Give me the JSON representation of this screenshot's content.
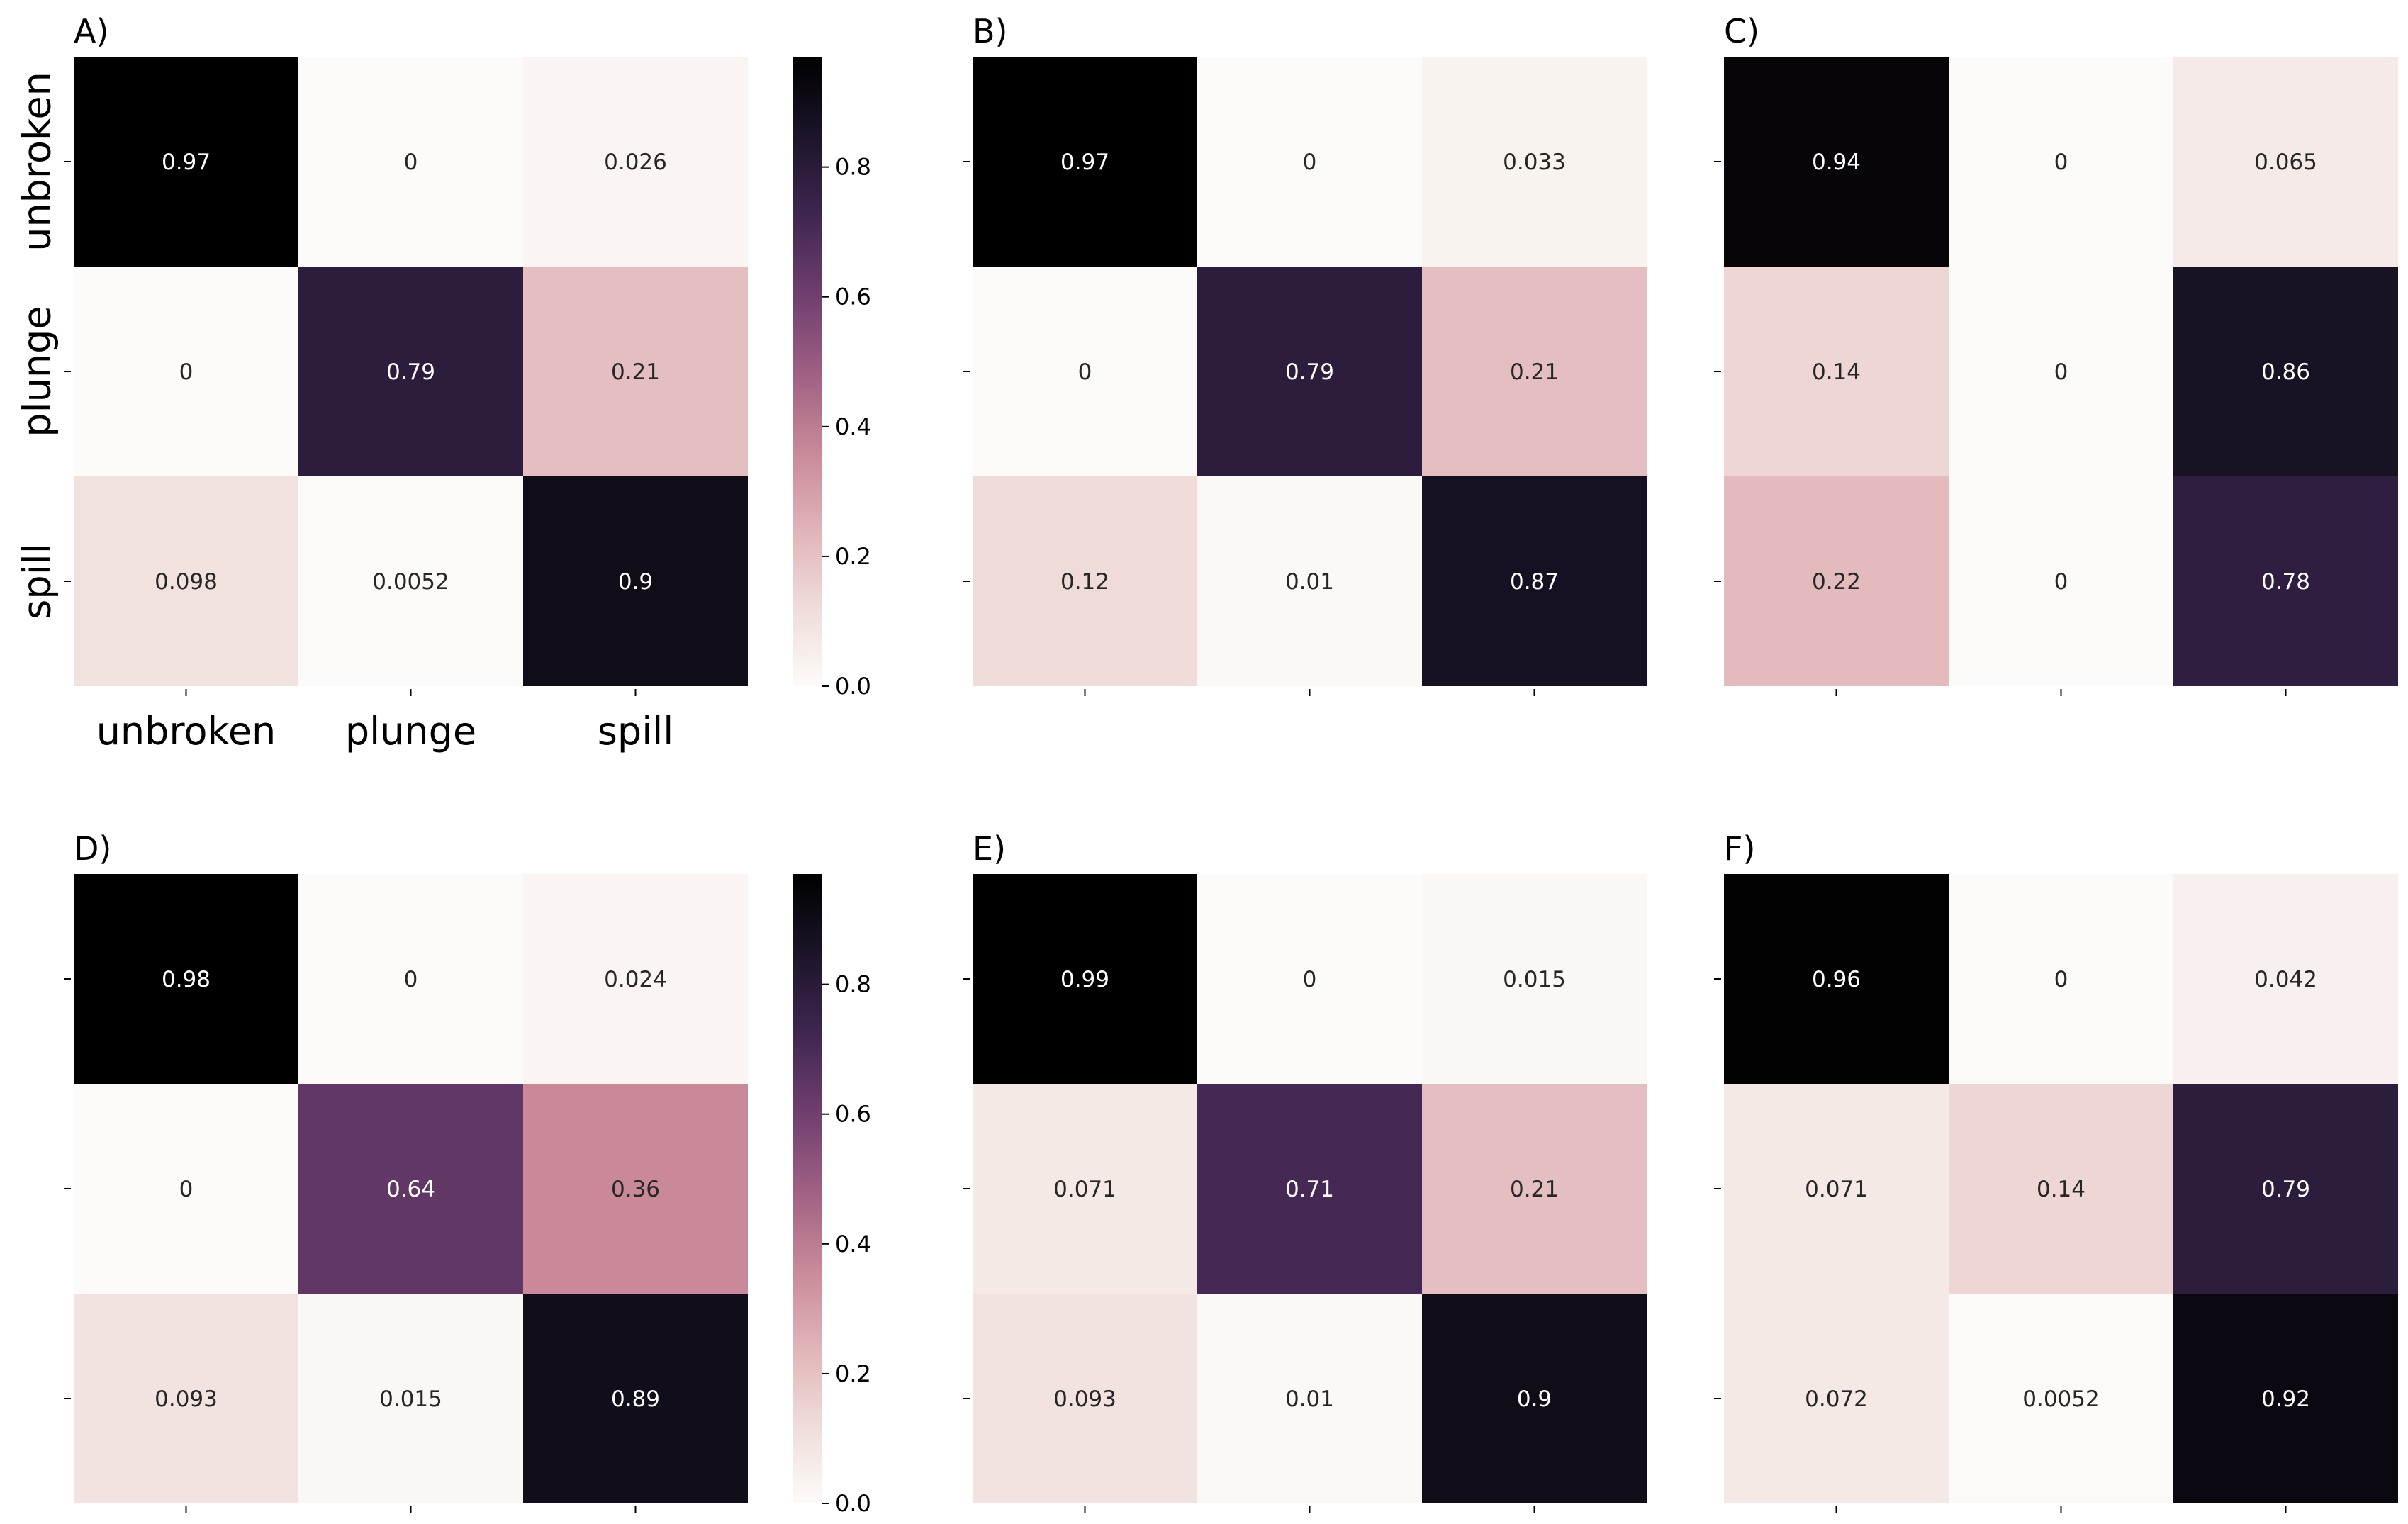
{
  "figure": {
    "background": "#ffffff"
  },
  "chart_data": [
    {
      "type": "heatmap",
      "title": "A)",
      "row_labels": [
        "unbroken",
        "plunge",
        "spill"
      ],
      "column_labels": [
        "unbroken",
        "plunge",
        "spill"
      ],
      "values": [
        [
          0.97,
          0,
          0.026
        ],
        [
          0,
          0.79,
          0.21
        ],
        [
          0.098,
          0.0052,
          0.9
        ]
      ],
      "cell_labels": [
        [
          "0.97",
          "0",
          "0.026"
        ],
        [
          "0",
          "0.79",
          "0.21"
        ],
        [
          "0.098",
          "0.0052",
          "0.9"
        ]
      ],
      "show_tick_labels": true,
      "colorbar": true,
      "vmin": 0,
      "vmax": 0.97
    },
    {
      "type": "heatmap",
      "title": "B)",
      "row_labels": [],
      "column_labels": [],
      "values": [
        [
          0.97,
          0,
          0.033
        ],
        [
          0,
          0.79,
          0.21
        ],
        [
          0.12,
          0.01,
          0.87
        ]
      ],
      "cell_labels": [
        [
          "0.97",
          "0",
          "0.033"
        ],
        [
          "0",
          "0.79",
          "0.21"
        ],
        [
          "0.12",
          "0.01",
          "0.87"
        ]
      ],
      "show_tick_labels": false,
      "colorbar": false,
      "vmin": 0,
      "vmax": 0.97
    },
    {
      "type": "heatmap",
      "title": "C)",
      "row_labels": [],
      "column_labels": [],
      "values": [
        [
          0.94,
          0,
          0.065
        ],
        [
          0.14,
          0,
          0.86
        ],
        [
          0.22,
          0,
          0.78
        ]
      ],
      "cell_labels": [
        [
          "0.94",
          "0",
          "0.065"
        ],
        [
          "0.14",
          "0",
          "0.86"
        ],
        [
          "0.22",
          "0",
          "0.78"
        ]
      ],
      "show_tick_labels": false,
      "colorbar": false,
      "vmin": 0,
      "vmax": 0.97
    },
    {
      "type": "heatmap",
      "title": "D)",
      "row_labels": [],
      "column_labels": [],
      "values": [
        [
          0.98,
          0,
          0.024
        ],
        [
          0,
          0.64,
          0.36
        ],
        [
          0.093,
          0.015,
          0.89
        ]
      ],
      "cell_labels": [
        [
          "0.98",
          "0",
          "0.024"
        ],
        [
          "0",
          "0.64",
          "0.36"
        ],
        [
          "0.093",
          "0.015",
          "0.89"
        ]
      ],
      "show_tick_labels": false,
      "colorbar": true,
      "vmin": 0,
      "vmax": 0.97
    },
    {
      "type": "heatmap",
      "title": "E)",
      "row_labels": [],
      "column_labels": [],
      "values": [
        [
          0.99,
          0,
          0.015
        ],
        [
          0.071,
          0.71,
          0.21
        ],
        [
          0.093,
          0.01,
          0.9
        ]
      ],
      "cell_labels": [
        [
          "0.99",
          "0",
          "0.015"
        ],
        [
          "0.071",
          "0.71",
          "0.21"
        ],
        [
          "0.093",
          "0.01",
          "0.9"
        ]
      ],
      "show_tick_labels": false,
      "colorbar": false,
      "vmin": 0,
      "vmax": 0.97
    },
    {
      "type": "heatmap",
      "title": "F)",
      "row_labels": [],
      "column_labels": [],
      "values": [
        [
          0.96,
          0,
          0.042
        ],
        [
          0.071,
          0.14,
          0.79
        ],
        [
          0.072,
          0.0052,
          0.92
        ]
      ],
      "cell_labels": [
        [
          "0.96",
          "0",
          "0.042"
        ],
        [
          "0.071",
          "0.14",
          "0.79"
        ],
        [
          "0.072",
          "0.0052",
          "0.92"
        ]
      ],
      "show_tick_labels": false,
      "colorbar": false,
      "vmin": 0,
      "vmax": 0.97
    }
  ],
  "colorbar": {
    "ticks": [
      0.0,
      0.2,
      0.4,
      0.6,
      0.8
    ],
    "tick_labels": [
      "0.0",
      "0.2",
      "0.4",
      "0.6",
      "0.8"
    ],
    "colormap": [
      "#fdfbf9",
      "#efdcd8",
      "#e0b3b7",
      "#c88898",
      "#9e5f83",
      "#6e3e6e",
      "#3e2650",
      "#1c1429",
      "#000000"
    ]
  }
}
